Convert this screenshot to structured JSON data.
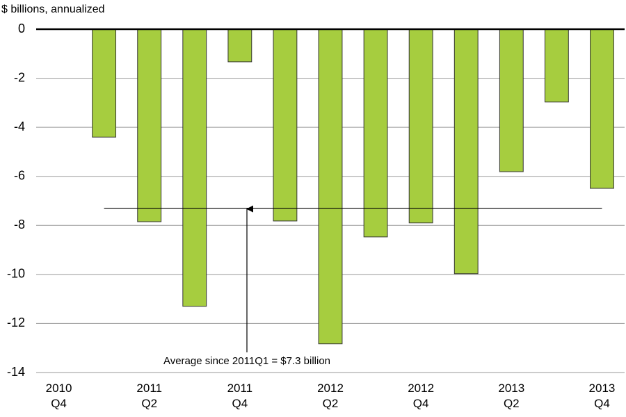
{
  "chart_data": {
    "type": "bar",
    "y_axis_label": "$ billions, annualized",
    "categories": [
      "2010\nQ4",
      null,
      "2011\nQ2",
      null,
      "2011\nQ4",
      null,
      "2012\nQ2",
      null,
      "2012\nQ4",
      null,
      "2013\nQ2",
      null,
      "2013\nQ4"
    ],
    "values": [
      null,
      -4.4,
      -7.85,
      -11.3,
      -1.33,
      -7.82,
      -12.83,
      -8.47,
      -7.9,
      -9.97,
      -5.81,
      -2.97,
      -6.49
    ],
    "color": "#a6cd3f",
    "ylim": [
      -14,
      0
    ],
    "yticks": [
      0,
      -2,
      -4,
      -6,
      -8,
      -10,
      -12,
      -14
    ],
    "grid": true,
    "average": {
      "label": "Average since 2011Q1  = $7.3 billion",
      "value": -7.3
    }
  }
}
